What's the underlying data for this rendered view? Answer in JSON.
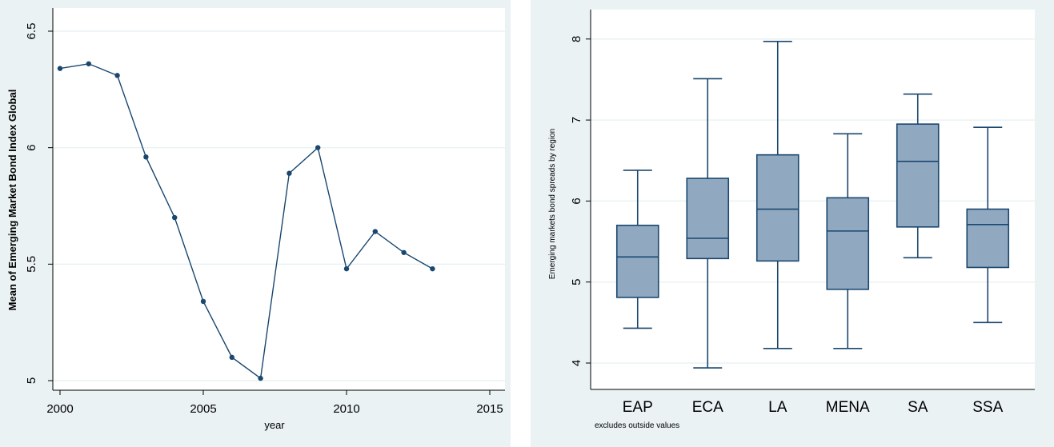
{
  "chart_data": [
    {
      "type": "line",
      "xlabel": "year",
      "ylabel": "Mean of Emerging Market Bond Index Global",
      "xlim": [
        2000,
        2015
      ],
      "ylim": [
        5,
        6.5
      ],
      "x_ticks": [
        2000,
        2005,
        2010,
        2015
      ],
      "x_tick_labels": [
        "2000",
        "2005",
        "2010",
        "2015"
      ],
      "y_ticks": [
        5,
        5.5,
        6,
        6.5
      ],
      "y_tick_labels": [
        "5",
        "5.5",
        "6",
        "6.5"
      ],
      "grid": true,
      "line_color": "#1a476f",
      "series": [
        {
          "x": [
            2000,
            2001,
            2002,
            2003,
            2004,
            2005,
            2006,
            2007,
            2008,
            2009,
            2010,
            2011,
            2012,
            2013
          ],
          "values": [
            6.34,
            6.36,
            6.31,
            5.96,
            5.7,
            5.34,
            5.1,
            5.01,
            5.89,
            6.0,
            5.48,
            5.64,
            5.55,
            5.48
          ]
        }
      ]
    },
    {
      "type": "box",
      "ylabel": "Emerging markets bond spreads by region",
      "note": "excludes outside values",
      "categories": [
        "EAP",
        "ECA",
        "LA",
        "MENA",
        "SA",
        "SSA"
      ],
      "ylim": [
        3.7,
        8.2
      ],
      "y_ticks": [
        4,
        5,
        6,
        7,
        8
      ],
      "y_tick_labels": [
        "4",
        "5",
        "6",
        "7",
        "8"
      ],
      "grid": true,
      "box_fill": "#90a8c0",
      "box_stroke": "#1a476f",
      "boxes": [
        {
          "min": 4.43,
          "q1": 4.81,
          "median": 5.31,
          "q3": 5.7,
          "max": 6.38
        },
        {
          "min": 3.94,
          "q1": 5.29,
          "median": 5.54,
          "q3": 6.28,
          "max": 7.51
        },
        {
          "min": 4.18,
          "q1": 5.26,
          "median": 5.9,
          "q3": 6.57,
          "max": 7.97
        },
        {
          "min": 4.18,
          "q1": 4.91,
          "median": 5.63,
          "q3": 6.04,
          "max": 6.83
        },
        {
          "min": 5.3,
          "q1": 5.68,
          "median": 6.49,
          "q3": 6.95,
          "max": 7.32
        },
        {
          "min": 4.5,
          "q1": 5.18,
          "median": 5.71,
          "q3": 5.9,
          "max": 6.91
        }
      ]
    }
  ]
}
